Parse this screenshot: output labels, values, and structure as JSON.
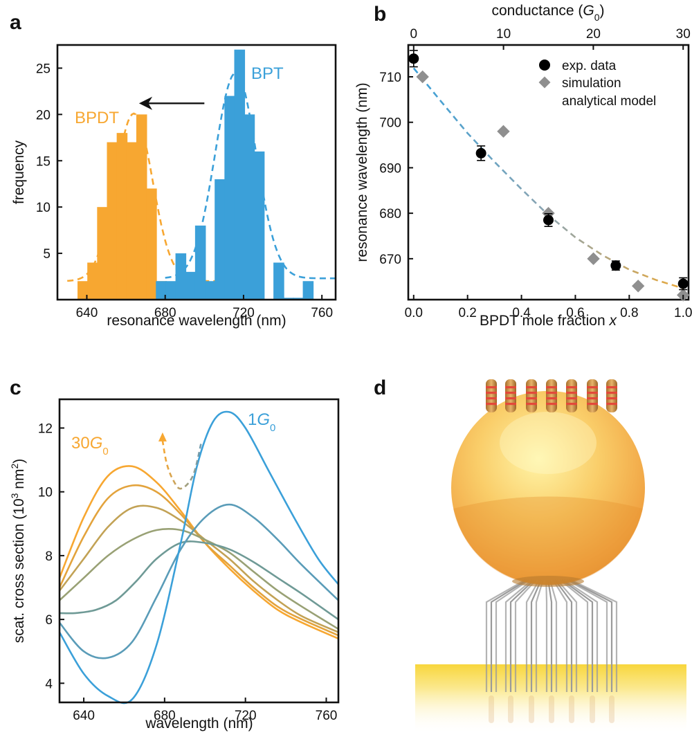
{
  "panel_labels": [
    "a",
    "b",
    "c",
    "d"
  ],
  "chart_data": [
    {
      "id": "a",
      "type": "bar",
      "xlabel": "resonance wavelength (nm)",
      "ylabel": "frequency",
      "xlim": [
        625,
        767
      ],
      "ylim": [
        0,
        27.5
      ],
      "xticks": [
        640,
        680,
        720,
        760
      ],
      "yticks": [
        5,
        10,
        15,
        20,
        25
      ],
      "bar_width_nm": 5.5,
      "series": [
        {
          "name": "BPDT",
          "color": "#f7a731",
          "x": [
            638,
            643,
            648,
            653,
            658,
            663,
            668,
            673,
            678,
            688,
            698
          ],
          "values": [
            2,
            4,
            10,
            17,
            18,
            17,
            20,
            12,
            2,
            2,
            2
          ],
          "fit": {
            "amplitude": 20.1,
            "center": 664,
            "sigma": 9.5,
            "baseline": 2.0,
            "range": [
              630,
              716
            ]
          }
        },
        {
          "name": "BPT",
          "color": "#3ba0d9",
          "x": [
            678,
            683,
            688,
            693,
            698,
            703,
            708,
            713,
            718,
            723,
            728,
            738,
            743,
            748,
            753
          ],
          "values": [
            2,
            2,
            5,
            3,
            8,
            2,
            13,
            22,
            27,
            20,
            16,
            4,
            0.2,
            0.2,
            2
          ],
          "fit": {
            "amplitude": 24.5,
            "center": 716,
            "sigma": 10.5,
            "baseline": 2.3,
            "range": [
              680,
              767
            ]
          }
        }
      ],
      "annotations": [
        {
          "text": "BPDT",
          "color": "#f7a731"
        },
        {
          "text": "BPT",
          "color": "#3ba0d9"
        }
      ],
      "arrow": {
        "from": [
          700,
          21.2
        ],
        "to": [
          668,
          21.2
        ]
      }
    },
    {
      "id": "b",
      "type": "scatter",
      "xlabel_prefix": "BPDT mole fraction ",
      "xlabel_var": "x",
      "ylabel": "resonance wavelength (nm)",
      "top_xlabel_prefix": "conductance (",
      "top_xlabel_var": "G",
      "top_xlabel_sub": "0",
      "top_xlabel_suffix": ")",
      "xlim": [
        -0.02,
        1.02
      ],
      "ylim": [
        661,
        717
      ],
      "xticks": [
        0.0,
        0.2,
        0.4,
        0.6,
        0.8,
        1.0
      ],
      "xticklabels": [
        "0.0",
        "0.2",
        "0.4",
        "0.6",
        "0.8",
        "1.0"
      ],
      "yticks": [
        670,
        680,
        690,
        700,
        710
      ],
      "top_xlim": [
        -0.6,
        30.6
      ],
      "top_xticks": [
        0,
        10,
        20,
        30
      ],
      "top_xticklabels": [
        "0",
        "10",
        "20",
        "30"
      ],
      "legend": [
        "exp. data",
        "simulation",
        "analytical model"
      ],
      "legend_position": "top-right",
      "series": [
        {
          "name": "exp. data",
          "marker": "circle",
          "color": "#000000",
          "x": [
            0.0,
            0.25,
            0.5,
            0.75,
            1.0
          ],
          "y": [
            714,
            693.2,
            678.5,
            668.5,
            664.5
          ],
          "yerr": [
            1.8,
            1.6,
            1.4,
            1.0,
            1.3
          ]
        },
        {
          "name": "simulation",
          "marker": "diamond",
          "color": "#8f8f8f",
          "x": [
            0.033,
            0.333,
            0.5,
            0.667,
            0.833,
            1.0
          ],
          "y": [
            710,
            698,
            680,
            670,
            664,
            662
          ],
          "conductance": [
            1,
            10,
            15,
            20,
            25,
            30
          ]
        },
        {
          "name": "analytical model",
          "style": "dashed",
          "color_start": "#3ba0d9",
          "color_end": "#e8a83a",
          "x": [
            0.0,
            0.1,
            0.2,
            0.3,
            0.4,
            0.5,
            0.6,
            0.7,
            0.8,
            0.9,
            1.0
          ],
          "y": [
            711.9,
            704.7,
            697.6,
            691.3,
            685.3,
            679.6,
            674.7,
            670.8,
            667.6,
            665.3,
            663.5
          ]
        }
      ]
    },
    {
      "id": "c",
      "type": "line",
      "xlabel": "wavelength (nm)",
      "ylabel_prefix": "scat. cross section (10",
      "ylabel_sup1": "3",
      "ylabel_mid": " nm",
      "ylabel_sup2": "2",
      "ylabel_suffix": ")",
      "xlim": [
        628,
        766
      ],
      "ylim": [
        3.4,
        12.9
      ],
      "xticks": [
        640,
        680,
        720,
        760
      ],
      "yticks": [
        4,
        6,
        8,
        10,
        12
      ],
      "annotations": [
        {
          "prefix": "30",
          "var": "G",
          "sub": "0",
          "color": "#f7a731"
        },
        {
          "prefix": "1",
          "var": "G",
          "sub": "0",
          "color": "#3ba0d9"
        }
      ],
      "series": [
        {
          "color": "#f7a731",
          "x": [
            628,
            640,
            652,
            664,
            676,
            688,
            700,
            712,
            724,
            736,
            748,
            766
          ],
          "y": [
            7.3,
            9.2,
            10.5,
            10.8,
            10.3,
            9.4,
            8.4,
            7.6,
            6.9,
            6.3,
            5.9,
            5.4
          ]
        },
        {
          "color": "#e3a33c",
          "x": [
            628,
            640,
            652,
            664,
            676,
            688,
            700,
            712,
            724,
            736,
            748,
            766
          ],
          "y": [
            7.0,
            8.6,
            9.8,
            10.2,
            10.0,
            9.3,
            8.4,
            7.7,
            7.0,
            6.4,
            6.0,
            5.5
          ]
        },
        {
          "color": "#c2a255",
          "x": [
            628,
            640,
            652,
            664,
            676,
            688,
            700,
            712,
            724,
            736,
            748,
            766
          ],
          "y": [
            6.9,
            7.9,
            8.9,
            9.5,
            9.5,
            9.1,
            8.5,
            7.9,
            7.2,
            6.6,
            6.1,
            5.6
          ]
        },
        {
          "color": "#99a175",
          "x": [
            628,
            640,
            652,
            664,
            676,
            688,
            700,
            712,
            724,
            736,
            748,
            766
          ],
          "y": [
            6.6,
            7.3,
            8.0,
            8.5,
            8.8,
            8.8,
            8.5,
            8.1,
            7.5,
            6.9,
            6.4,
            5.7
          ]
        },
        {
          "color": "#6f9a96",
          "x": [
            628,
            636,
            646,
            656,
            666,
            676,
            688,
            700,
            712,
            724,
            736,
            748,
            766
          ],
          "y": [
            6.2,
            6.2,
            6.3,
            6.6,
            7.2,
            7.9,
            8.4,
            8.4,
            8.2,
            7.8,
            7.3,
            6.8,
            6.0
          ]
        },
        {
          "color": "#5a9cb8",
          "x": [
            628,
            640,
            652,
            664,
            676,
            688,
            700,
            712,
            724,
            736,
            748,
            766
          ],
          "y": [
            5.9,
            5.0,
            4.8,
            5.3,
            6.7,
            8.2,
            9.2,
            9.6,
            9.2,
            8.5,
            7.7,
            6.6
          ]
        },
        {
          "color": "#3ba0d9",
          "x": [
            628,
            640,
            652,
            664,
            676,
            688,
            696,
            704,
            712,
            720,
            732,
            744,
            756,
            766
          ],
          "y": [
            5.6,
            4.3,
            3.6,
            3.5,
            5.2,
            8.4,
            10.8,
            12.2,
            12.5,
            12.0,
            10.6,
            9.2,
            7.9,
            7.1
          ]
        }
      ],
      "trend_arrow": {
        "x": [
          698,
          694,
          688,
          684,
          681,
          679
        ],
        "y": [
          11.5,
          10.5,
          10.1,
          10.4,
          10.9,
          11.6
        ]
      }
    }
  ],
  "illustration": {
    "description": "gold nanoparticle on mirror with molecular junctions",
    "sphere_color": "#f6b44a",
    "mirror_color": "#f9d94a",
    "resistor_band_color": "#e3483a"
  }
}
